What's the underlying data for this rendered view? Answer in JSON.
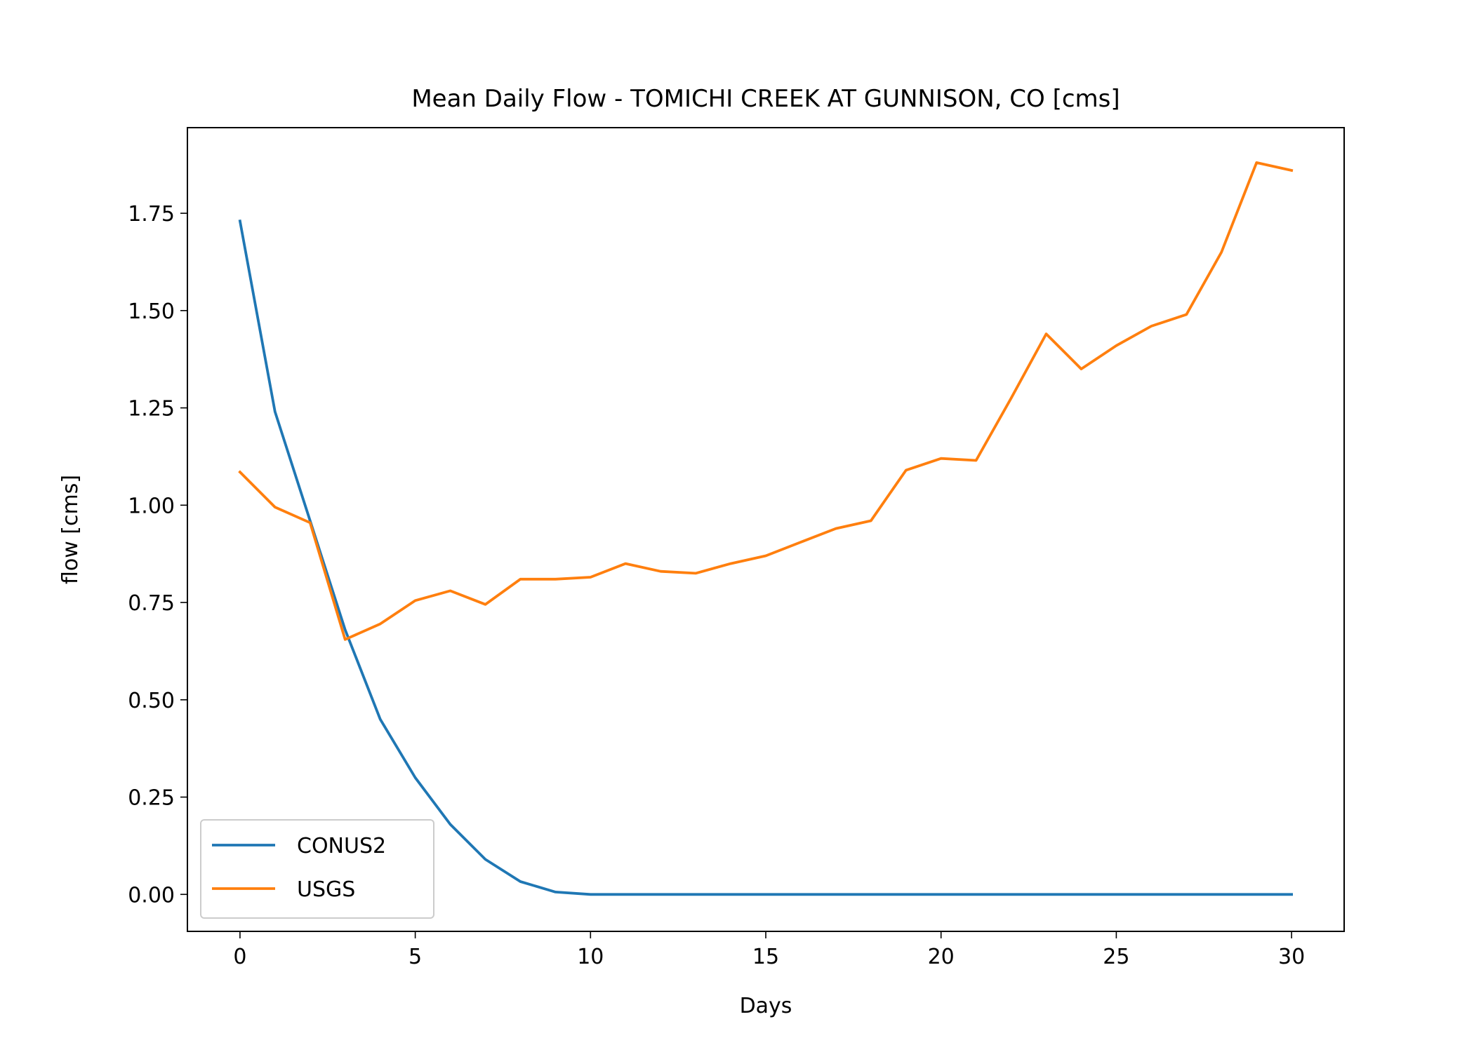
{
  "chart_data": {
    "type": "line",
    "title": "Mean Daily Flow - TOMICHI CREEK AT GUNNISON, CO [cms]",
    "xlabel": "Days",
    "ylabel": "flow [cms]",
    "xlim": [
      -1.5,
      31.5
    ],
    "ylim": [
      -0.095,
      1.97
    ],
    "xticks": [
      0,
      5,
      10,
      15,
      20,
      25,
      30
    ],
    "xtick_labels": [
      "0",
      "5",
      "10",
      "15",
      "20",
      "25",
      "30"
    ],
    "yticks": [
      0.0,
      0.25,
      0.5,
      0.75,
      1.0,
      1.25,
      1.5,
      1.75
    ],
    "ytick_labels": [
      "0.00",
      "0.25",
      "0.50",
      "0.75",
      "1.00",
      "1.25",
      "1.50",
      "1.75"
    ],
    "grid": false,
    "legend_position": "lower-left",
    "x": [
      0,
      1,
      2,
      3,
      4,
      5,
      6,
      7,
      8,
      9,
      10,
      11,
      12,
      13,
      14,
      15,
      16,
      17,
      18,
      19,
      20,
      21,
      22,
      23,
      24,
      25,
      26,
      27,
      28,
      29,
      30
    ],
    "series": [
      {
        "name": "CONUS2",
        "color": "#1f77b4",
        "values": [
          1.73,
          1.24,
          0.96,
          0.68,
          0.45,
          0.3,
          0.18,
          0.09,
          0.033,
          0.006,
          0.0,
          0.0,
          0.0,
          0.0,
          0.0,
          0.0,
          0.0,
          0.0,
          0.0,
          0.0,
          0.0,
          0.0,
          0.0,
          0.0,
          0.0,
          0.0,
          0.0,
          0.0,
          0.0,
          0.0,
          0.0
        ]
      },
      {
        "name": "USGS",
        "color": "#ff7f0e",
        "values": [
          1.085,
          0.995,
          0.955,
          0.655,
          0.695,
          0.755,
          0.78,
          0.745,
          0.81,
          0.81,
          0.815,
          0.85,
          0.83,
          0.825,
          0.85,
          0.87,
          0.905,
          0.94,
          0.96,
          1.09,
          1.12,
          1.115,
          1.275,
          1.44,
          1.35,
          1.41,
          1.46,
          1.49,
          1.65,
          1.88,
          1.86
        ]
      }
    ]
  }
}
